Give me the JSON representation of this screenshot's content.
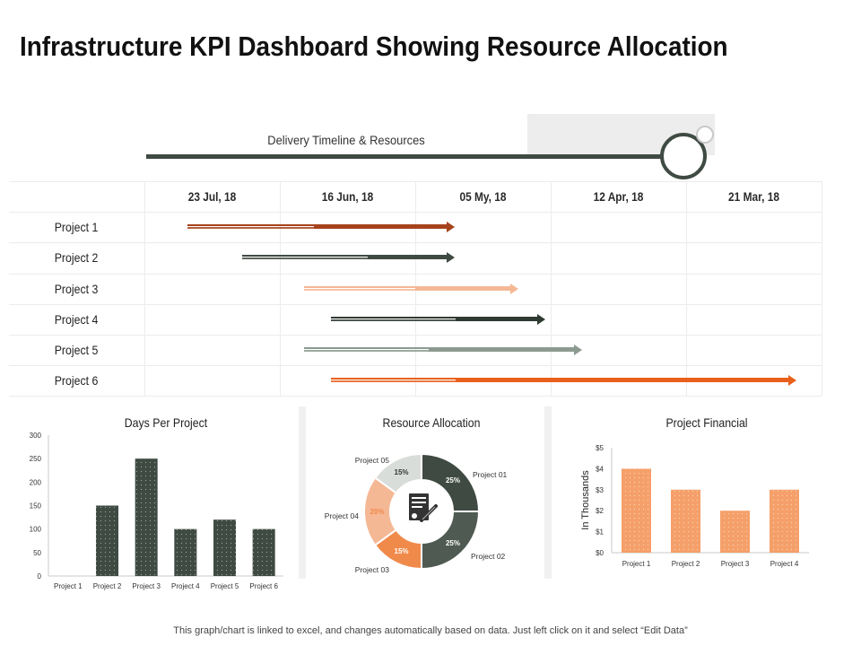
{
  "title": "Infrastructure KPI Dashboard Showing Resource Allocation",
  "timeline": {
    "heading": "Delivery Timeline & Resources",
    "dates": [
      "23 Jul, 18",
      "16 Jun, 18",
      "05 My, 18",
      "12 Apr, 18",
      "21 Mar, 18"
    ],
    "projects": [
      {
        "label": "Project 1",
        "start": 0.32,
        "end": 2.28,
        "color": "#a6421c",
        "thick_start": 1.25
      },
      {
        "label": "Project 2",
        "start": 0.72,
        "end": 2.28,
        "color": "#3f4a43",
        "thick_start": 1.65
      },
      {
        "label": "Project 3",
        "start": 1.18,
        "end": 2.75,
        "color": "#f5b895",
        "thick_start": 2.0
      },
      {
        "label": "Project 4",
        "start": 1.38,
        "end": 2.95,
        "color": "#2f3a33",
        "thick_start": 2.3
      },
      {
        "label": "Project 5",
        "start": 1.18,
        "end": 3.22,
        "color": "#8c9a90",
        "thick_start": 2.1
      },
      {
        "label": "Project 6",
        "start": 1.38,
        "end": 4.8,
        "color": "#e8601c",
        "thick_start": 2.3
      }
    ]
  },
  "chart_data": [
    {
      "type": "bar",
      "title": "Days Per Project",
      "categories": [
        "Project 1",
        "Project 2",
        "Project 3",
        "Project 4",
        "Project 5",
        "Project 6"
      ],
      "values": [
        0,
        150,
        250,
        100,
        120,
        100
      ],
      "ylim": [
        0,
        300
      ],
      "yticks": [
        "0",
        "50",
        "100",
        "150",
        "200",
        "250",
        "300"
      ],
      "color": "#3f4a43"
    },
    {
      "type": "pie",
      "title": "Resource Allocation",
      "labels": [
        "Project 01",
        "Project 02",
        "Project 03",
        "Project 04",
        "Project 05"
      ],
      "values": [
        25,
        25,
        15,
        20,
        15
      ],
      "value_labels": [
        "25%",
        "25%",
        "15%",
        "20%",
        "15%"
      ],
      "colors": [
        "#3f4a43",
        "#4f5a52",
        "#f08a4b",
        "#f5b895",
        "#d9ddd9"
      ]
    },
    {
      "type": "bar",
      "title": "Project Financial",
      "ylabel": "In Thousands",
      "categories": [
        "Project 1",
        "Project 2",
        "Project 3",
        "Project 4"
      ],
      "values": [
        4,
        3,
        2,
        3
      ],
      "ylim": [
        0,
        5
      ],
      "yticks": [
        "$0",
        "$1",
        "$2",
        "$3",
        "$4",
        "$5"
      ],
      "color": "#f5a06a"
    }
  ],
  "icons": {
    "center_icon": "document-pen-icon"
  },
  "footer": "This graph/chart is linked to excel, and changes automatically based on data. Just left click on it and select “Edit Data”"
}
